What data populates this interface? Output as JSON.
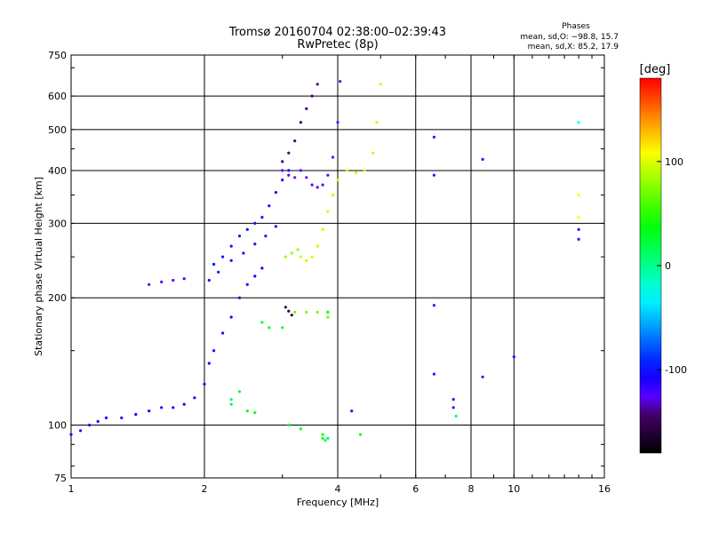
{
  "chart_data": {
    "type": "scatter",
    "title": "Tromsø 20160704 02:38:00–02:39:43",
    "subtitle": "RwPretec (8p)",
    "xlabel": "Frequency [MHz]",
    "ylabel": "Stationary phase Virtual Height [km]",
    "x_scale": "log",
    "y_scale": "log",
    "xlim": [
      1,
      16
    ],
    "ylim": [
      75,
      750
    ],
    "x_ticks": [
      1,
      2,
      4,
      6,
      8,
      10,
      16
    ],
    "y_ticks": [
      75,
      100,
      200,
      300,
      400,
      500,
      600,
      750
    ],
    "grid": true,
    "legend": {
      "heading": "Phases",
      "lines": [
        "mean, sd,O: −98.8, 15.7",
        "mean, sd,X: 85.2, 17.9"
      ],
      "placement": "top-right"
    },
    "colorbar": {
      "label": "[deg]",
      "ticks": [
        100,
        0,
        -100
      ],
      "range": [
        -180,
        180
      ],
      "placement": "right"
    },
    "traces": [
      {
        "color_deg": -110,
        "points": [
          [
            1.0,
            95
          ],
          [
            1.05,
            97
          ],
          [
            1.1,
            100
          ],
          [
            1.15,
            102
          ],
          [
            1.2,
            104
          ],
          [
            1.3,
            104
          ],
          [
            1.4,
            106
          ],
          [
            1.5,
            108
          ],
          [
            1.6,
            110
          ],
          [
            1.7,
            110
          ],
          [
            1.8,
            112
          ],
          [
            1.9,
            116
          ],
          [
            2.0,
            125
          ],
          [
            2.05,
            140
          ],
          [
            2.1,
            150
          ],
          [
            2.2,
            165
          ],
          [
            2.3,
            180
          ],
          [
            2.4,
            200
          ],
          [
            2.5,
            215
          ],
          [
            2.6,
            225
          ],
          [
            2.7,
            235
          ]
        ]
      },
      {
        "color_deg": -95,
        "points": [
          [
            2.1,
            240
          ],
          [
            2.2,
            250
          ],
          [
            2.3,
            265
          ],
          [
            2.4,
            280
          ],
          [
            2.5,
            290
          ],
          [
            2.6,
            300
          ],
          [
            2.7,
            310
          ],
          [
            2.8,
            330
          ],
          [
            2.9,
            355
          ],
          [
            3.0,
            380
          ],
          [
            3.1,
            400
          ]
        ]
      },
      {
        "color_deg": -115,
        "points": [
          [
            2.05,
            220
          ],
          [
            2.15,
            230
          ],
          [
            2.3,
            245
          ],
          [
            2.45,
            255
          ],
          [
            2.6,
            268
          ],
          [
            2.75,
            280
          ],
          [
            2.9,
            295
          ]
        ]
      },
      {
        "color_deg": -125,
        "points": [
          [
            1.5,
            215
          ],
          [
            1.6,
            218
          ],
          [
            1.7,
            220
          ],
          [
            1.8,
            222
          ]
        ]
      },
      {
        "color_deg": -130,
        "points": [
          [
            3.0,
            400
          ],
          [
            3.1,
            390
          ],
          [
            3.2,
            385
          ],
          [
            3.3,
            400
          ],
          [
            3.4,
            385
          ],
          [
            3.5,
            370
          ],
          [
            3.6,
            365
          ],
          [
            3.7,
            370
          ],
          [
            3.8,
            390
          ],
          [
            3.9,
            430
          ],
          [
            4.0,
            520
          ],
          [
            4.05,
            650
          ]
        ]
      },
      {
        "color_deg": -140,
        "points": [
          [
            3.0,
            420
          ],
          [
            3.1,
            440
          ],
          [
            3.2,
            470
          ],
          [
            3.3,
            520
          ],
          [
            3.4,
            560
          ],
          [
            3.5,
            600
          ],
          [
            3.6,
            640
          ]
        ]
      },
      {
        "color_deg": 95,
        "points": [
          [
            3.3,
            250
          ],
          [
            3.4,
            245
          ],
          [
            3.5,
            250
          ],
          [
            3.6,
            265
          ],
          [
            3.7,
            290
          ],
          [
            3.8,
            320
          ],
          [
            3.9,
            350
          ],
          [
            4.0,
            380
          ],
          [
            4.2,
            400
          ],
          [
            4.4,
            395
          ],
          [
            4.6,
            400
          ],
          [
            4.8,
            440
          ],
          [
            4.9,
            520
          ],
          [
            5.0,
            640
          ]
        ]
      },
      {
        "color_deg": 80,
        "points": [
          [
            3.05,
            250
          ],
          [
            3.15,
            255
          ],
          [
            3.25,
            260
          ]
        ]
      },
      {
        "color_deg": 70,
        "points": [
          [
            3.2,
            185
          ],
          [
            3.4,
            185
          ],
          [
            3.6,
            185
          ],
          [
            3.8,
            180
          ]
        ]
      },
      {
        "color_deg": -150,
        "points": [
          [
            3.05,
            190
          ],
          [
            3.1,
            186
          ],
          [
            3.15,
            182
          ]
        ]
      },
      {
        "color_deg": -120,
        "points": [
          [
            6.6,
            480
          ],
          [
            6.6,
            390
          ],
          [
            8.5,
            425
          ],
          [
            6.6,
            192
          ],
          [
            10.0,
            145
          ],
          [
            8.5,
            130
          ],
          [
            6.6,
            132
          ],
          [
            7.3,
            115
          ],
          [
            7.3,
            110
          ],
          [
            4.3,
            108
          ],
          [
            14.0,
            290
          ],
          [
            14.0,
            275
          ]
        ]
      },
      {
        "color_deg": 45,
        "points": [
          [
            3.8,
            185
          ],
          [
            3.8,
            185
          ],
          [
            4.5,
            95
          ],
          [
            3.7,
            95
          ],
          [
            3.7,
            93
          ]
        ]
      },
      {
        "color_deg": 10,
        "points": [
          [
            3.8,
            93
          ],
          [
            3.75,
            92
          ],
          [
            2.3,
            115
          ],
          [
            2.3,
            112
          ],
          [
            7.4,
            105
          ]
        ]
      },
      {
        "color_deg": 30,
        "points": [
          [
            2.7,
            175
          ],
          [
            2.8,
            170
          ],
          [
            3.0,
            170
          ],
          [
            2.4,
            120
          ],
          [
            2.5,
            108
          ],
          [
            2.6,
            107
          ],
          [
            3.1,
            100
          ],
          [
            3.3,
            98
          ]
        ]
      },
      {
        "color_deg": 110,
        "points": [
          [
            14.0,
            350
          ],
          [
            14.0,
            310
          ]
        ]
      },
      {
        "color_deg": -30,
        "points": [
          [
            14.0,
            520
          ]
        ]
      }
    ]
  }
}
